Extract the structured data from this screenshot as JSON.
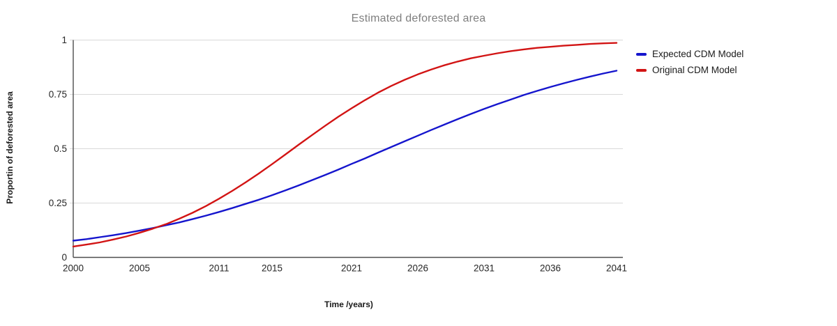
{
  "colors": {
    "background": "#ffffff",
    "grid": "#d9d9d9",
    "axis": "#4d4d4d",
    "tick_text": "#262626",
    "title_text": "#7f7f7f"
  },
  "chart_data": {
    "type": "line",
    "title": "Estimated deforested area",
    "xlabel": "Time /years)",
    "ylabel": "Proportin of deforested area",
    "xlim": [
      2000,
      2041
    ],
    "ylim": [
      0,
      1
    ],
    "grid": true,
    "legend_position": "right",
    "xticks": [
      2000,
      2005,
      2011,
      2015,
      2021,
      2026,
      2031,
      2036,
      2041
    ],
    "yticks": [
      0,
      0.25,
      0.5,
      0.75,
      1
    ],
    "ytick_labels": [
      "0",
      "0.25",
      "0.5",
      "0.75",
      "1"
    ],
    "x": [
      2000,
      2001,
      2002,
      2003,
      2004,
      2005,
      2006,
      2007,
      2008,
      2009,
      2010,
      2011,
      2012,
      2013,
      2014,
      2015,
      2016,
      2017,
      2018,
      2019,
      2020,
      2021,
      2022,
      2023,
      2024,
      2025,
      2026,
      2027,
      2028,
      2029,
      2030,
      2031,
      2032,
      2033,
      2034,
      2035,
      2036,
      2037,
      2038,
      2039,
      2040,
      2041
    ],
    "series": [
      {
        "name": "Expected CDM Model",
        "color": "#1515cd",
        "values": [
          0.077,
          0.084,
          0.093,
          0.102,
          0.112,
          0.123,
          0.135,
          0.148,
          0.161,
          0.176,
          0.192,
          0.209,
          0.227,
          0.246,
          0.265,
          0.286,
          0.308,
          0.331,
          0.355,
          0.379,
          0.404,
          0.43,
          0.455,
          0.482,
          0.508,
          0.534,
          0.56,
          0.586,
          0.611,
          0.636,
          0.66,
          0.683,
          0.705,
          0.726,
          0.747,
          0.766,
          0.784,
          0.801,
          0.817,
          0.832,
          0.846,
          0.859
        ]
      },
      {
        "name": "Original CDM Model",
        "color": "#d21414",
        "values": [
          0.05,
          0.059,
          0.069,
          0.082,
          0.096,
          0.113,
          0.132,
          0.153,
          0.178,
          0.205,
          0.236,
          0.27,
          0.306,
          0.345,
          0.386,
          0.429,
          0.473,
          0.518,
          0.562,
          0.605,
          0.647,
          0.686,
          0.723,
          0.758,
          0.789,
          0.817,
          0.842,
          0.864,
          0.884,
          0.901,
          0.916,
          0.928,
          0.939,
          0.949,
          0.957,
          0.964,
          0.969,
          0.974,
          0.978,
          0.982,
          0.985,
          0.987
        ]
      }
    ]
  }
}
